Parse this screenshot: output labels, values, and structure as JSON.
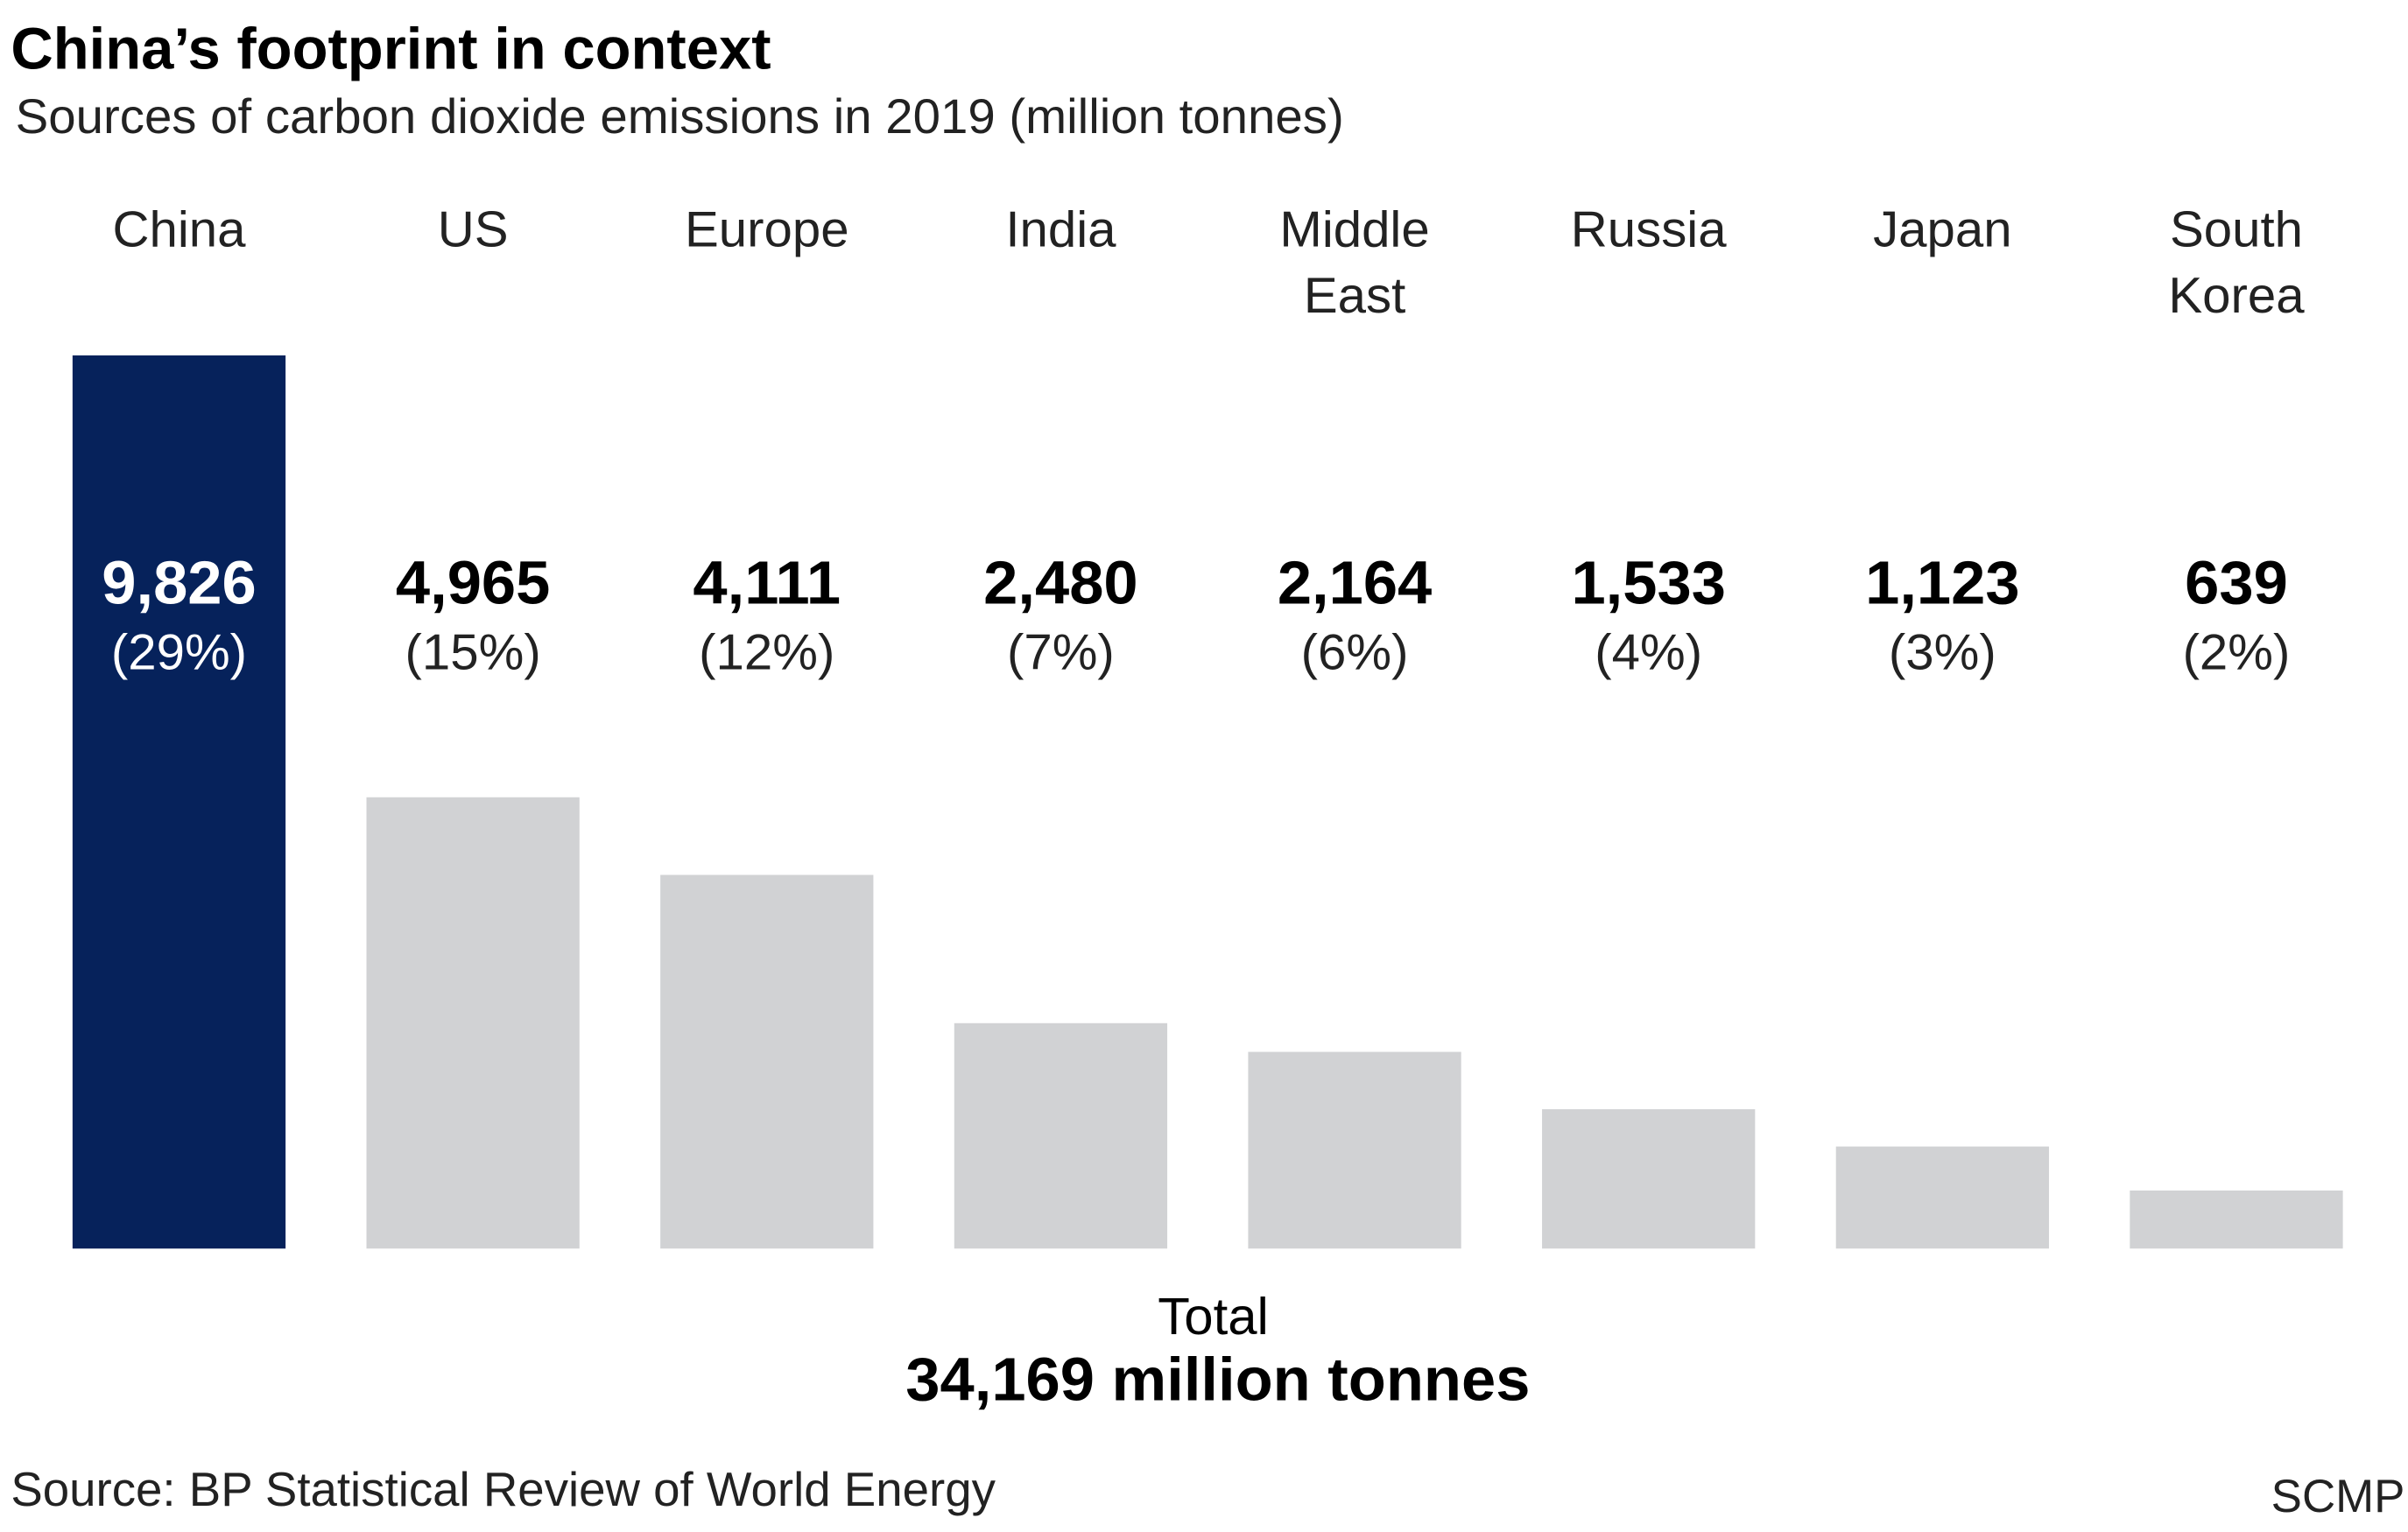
{
  "chart_data": {
    "type": "bar",
    "title": "China’s footprint in context",
    "subtitle": "Sources of carbon dioxide emissions in 2019 (million tonnes)",
    "categories": [
      [
        "China"
      ],
      [
        "US"
      ],
      [
        "Europe"
      ],
      [
        "India"
      ],
      [
        "Middle",
        "East"
      ],
      [
        "Russia"
      ],
      [
        "Japan"
      ],
      [
        "South",
        "Korea"
      ]
    ],
    "values": [
      9826,
      4965,
      4111,
      2480,
      2164,
      1533,
      1123,
      639
    ],
    "value_labels": [
      "9,826",
      "4,965",
      "4,111",
      "2,480",
      "2,164",
      "1,533",
      "1,123",
      "639"
    ],
    "percent_labels": [
      "(29%)",
      "(15%)",
      "(12%)",
      "(7%)",
      "(6%)",
      "(4%)",
      "(3%)",
      "(2%)"
    ],
    "highlight_index": 0,
    "ylim": [
      0,
      9826
    ],
    "grid": false,
    "total_label": "Total",
    "total_value": "34,169 million tonnes",
    "source": "Source: BP Statistical Review of World Energy",
    "credit": "SCMP",
    "colors": {
      "highlight": "#06225b",
      "bar": "#d1d2d4",
      "text": "#000000",
      "highlight_text": "#ffffff"
    }
  }
}
